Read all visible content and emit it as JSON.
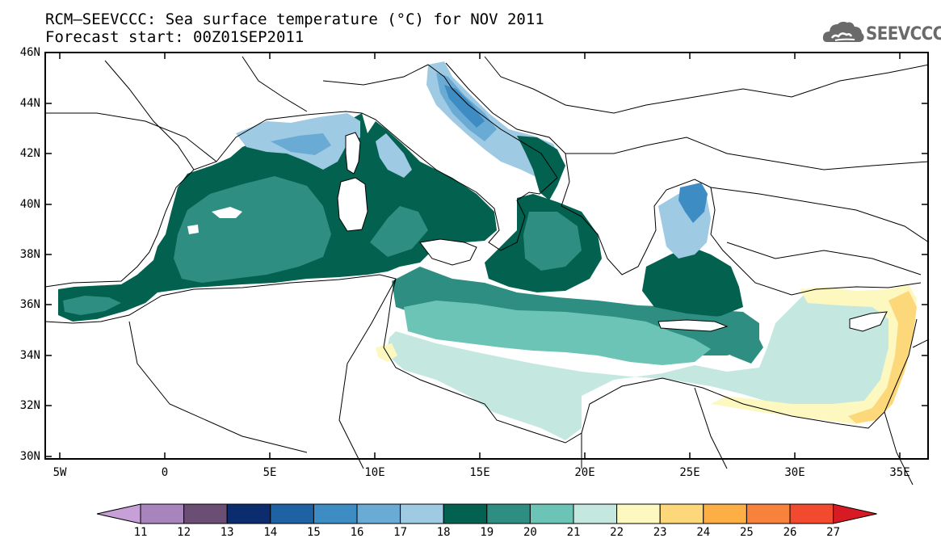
{
  "title": {
    "line1": "RCM–SEEVCCC: Sea surface temperature (°C) for NOV 2011",
    "line2": "Forecast start: 00Z01SEP2011"
  },
  "logo": {
    "text": "SEEVCCC",
    "icon": "cloud-logo-icon"
  },
  "axes": {
    "y_ticks": [
      "46N",
      "44N",
      "42N",
      "40N",
      "38N",
      "36N",
      "34N",
      "32N",
      "30N"
    ],
    "x_ticks": [
      "5W",
      "0",
      "5E",
      "10E",
      "15E",
      "20E",
      "25E",
      "30E",
      "35E"
    ],
    "lon_range": [
      -5.5,
      36.5
    ],
    "lat_range": [
      30,
      46
    ]
  },
  "colorbar": {
    "labels": [
      "11",
      "12",
      "13",
      "14",
      "15",
      "16",
      "17",
      "18",
      "19",
      "20",
      "21",
      "22",
      "23",
      "24",
      "25",
      "26",
      "27"
    ],
    "colors": [
      "#c8a0d8",
      "#a884bc",
      "#6a4e74",
      "#0b2d6e",
      "#1f62a4",
      "#3d8cc4",
      "#6aabd6",
      "#9ecae4",
      "#02614f",
      "#2e8e82",
      "#6cc4b6",
      "#c4e8e0",
      "#fdf8c0",
      "#fdd87a",
      "#fdaf46",
      "#f7823c",
      "#f24a2e",
      "#d81a24"
    ]
  },
  "colors": {
    "sea_18": "#9ecae4",
    "sea_17": "#6aabd6",
    "sea_16": "#3d8cc4",
    "sea_19": "#02614f",
    "sea_20": "#2e8e82",
    "sea_21": "#6cc4b6",
    "sea_22": "#c4e8e0",
    "sea_23": "#fdf8c0",
    "sea_24": "#fdd87a"
  }
}
